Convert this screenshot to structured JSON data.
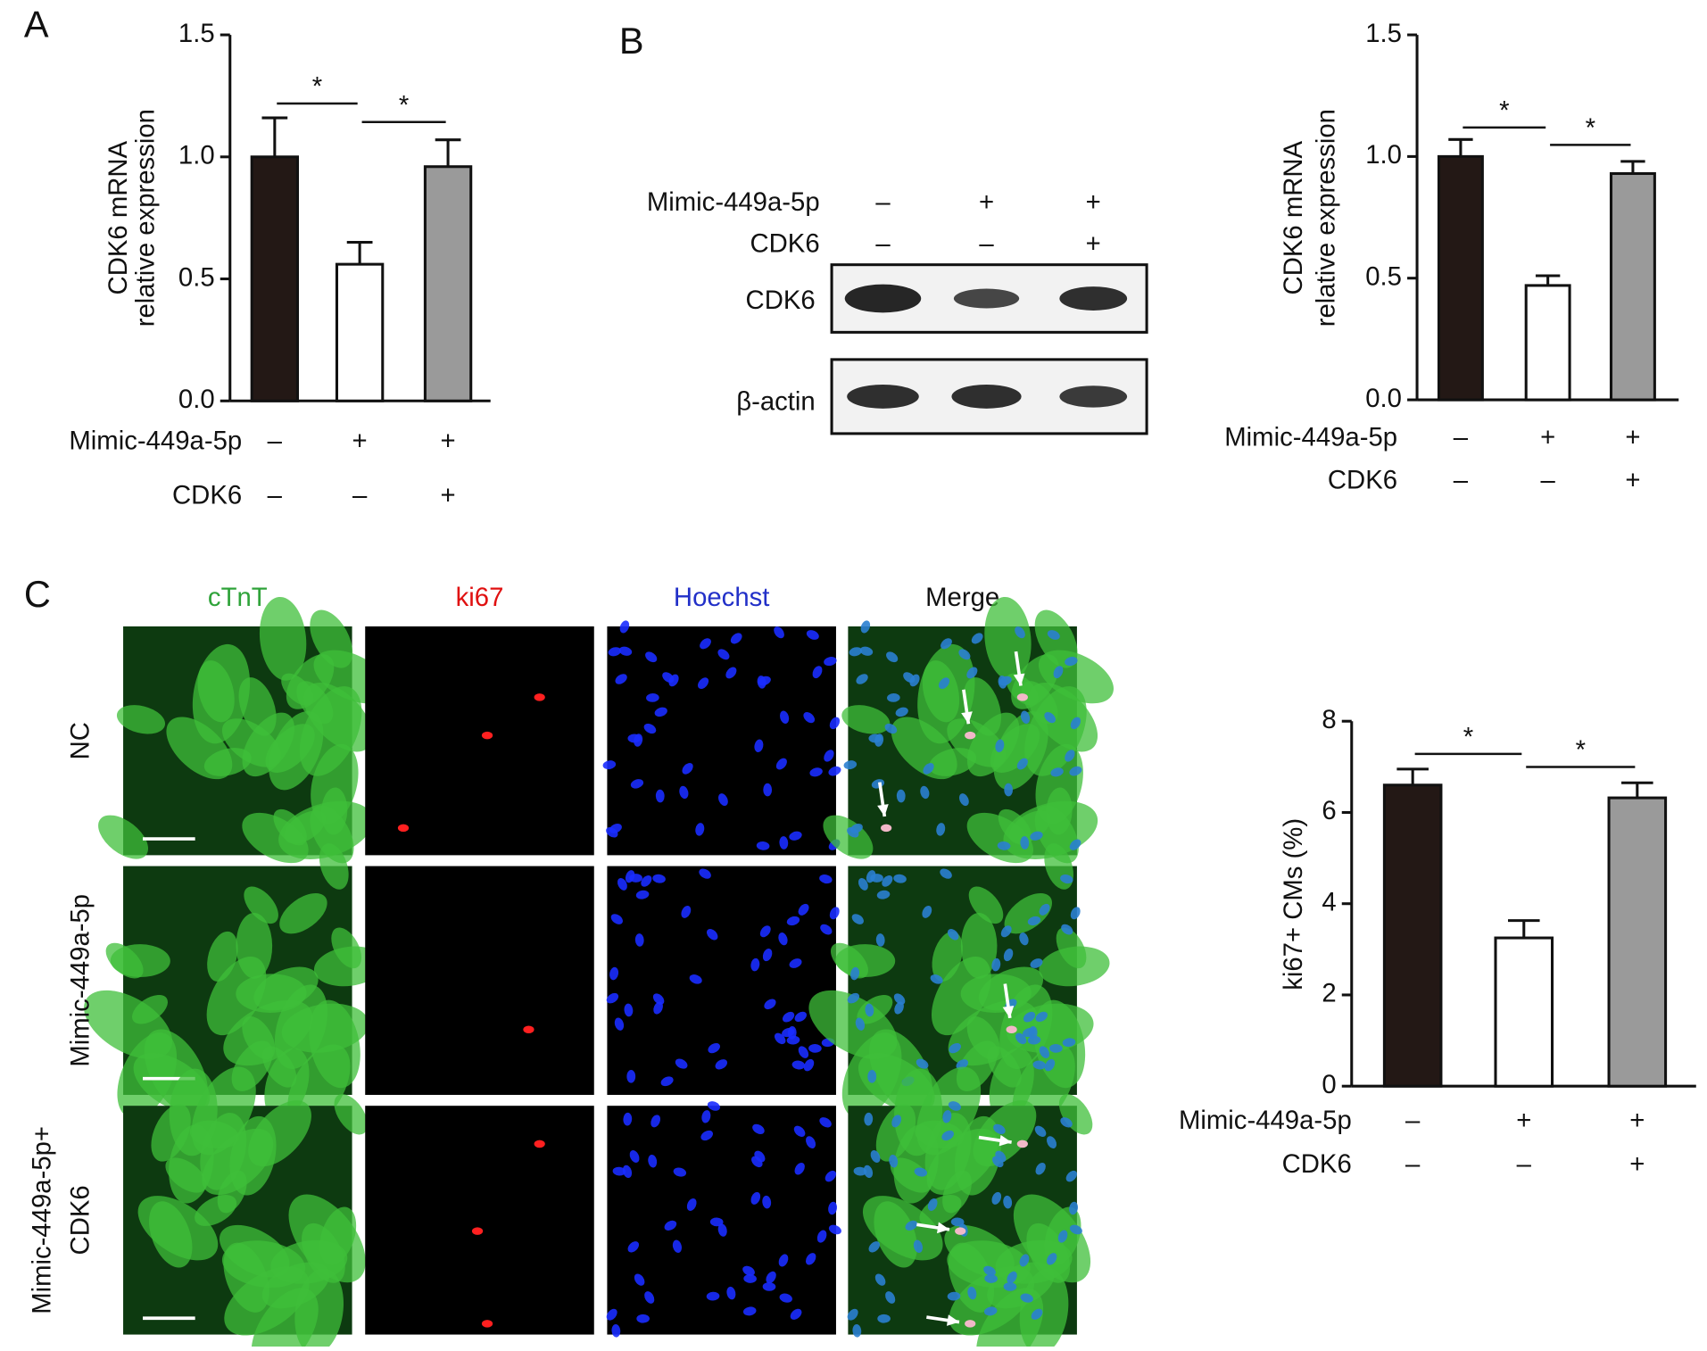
{
  "panel_labels": [
    "A",
    "B",
    "C"
  ],
  "chart_data": [
    {
      "type": "bar",
      "ylabel": [
        "CDK6 mRNA",
        "relative expression"
      ],
      "values": [
        1.0,
        0.56,
        0.96
      ],
      "errors": [
        0.16,
        0.09,
        0.11
      ],
      "colors": [
        "#231815",
        "#ffffff",
        "#9a9a9a"
      ],
      "ylim": [
        0,
        1.5
      ],
      "yticks": [
        {
          "value": 0,
          "label": "0.0"
        },
        0.5,
        {
          "value": 1,
          "label": "1.0"
        },
        1.5
      ],
      "conditions": [
        {
          "name": "Mimic-449a-5p",
          "signs": [
            "–",
            "+",
            "+"
          ]
        },
        {
          "name": "CDK6",
          "signs": [
            "–",
            "–",
            "+"
          ]
        }
      ],
      "annotations": [
        "*",
        "*"
      ]
    },
    {
      "type": "bar",
      "ylabel": [
        "CDK6 mRNA",
        "relative expression"
      ],
      "values": [
        1.0,
        0.47,
        0.93
      ],
      "errors": [
        0.07,
        0.04,
        0.05
      ],
      "colors": [
        "#231815",
        "#ffffff",
        "#9a9a9a"
      ],
      "ylim": [
        0,
        1.5
      ],
      "yticks": [
        {
          "value": 0,
          "label": "0.0"
        },
        0.5,
        {
          "value": 1,
          "label": "1.0"
        },
        1.5
      ],
      "conditions": [
        {
          "name": "Mimic-449a-5p",
          "signs": [
            "–",
            "+",
            "+"
          ]
        },
        {
          "name": "CDK6",
          "signs": [
            "–",
            "–",
            "+"
          ]
        }
      ],
      "annotations": [
        "*",
        "*"
      ]
    },
    {
      "type": "bar",
      "ylabel": [
        "ki67+ CMs (%)"
      ],
      "values": [
        6.6,
        3.25,
        6.32
      ],
      "errors": [
        0.35,
        0.38,
        0.33
      ],
      "colors": [
        "#231815",
        "#ffffff",
        "#9a9a9a"
      ],
      "ylim": [
        0,
        8
      ],
      "yticks": [
        0,
        2,
        4,
        6,
        8
      ],
      "conditions": [
        {
          "name": "Mimic-449a-5p",
          "signs": [
            "–",
            "+",
            "+"
          ]
        },
        {
          "name": "CDK6",
          "signs": [
            "–",
            "–",
            "+"
          ]
        }
      ],
      "annotations": [
        "*",
        "*"
      ]
    }
  ],
  "western_blot": {
    "conditions": [
      {
        "name": "Mimic-449a-5p",
        "signs": [
          "–",
          "+",
          "+"
        ]
      },
      {
        "name": "CDK6",
        "signs": [
          "–",
          "–",
          "+"
        ]
      }
    ],
    "rows": [
      "CDK6",
      "β-actin"
    ]
  },
  "immunofluorescence": {
    "channels": [
      "cTnT",
      "ki67",
      "Hoechst",
      "Merge"
    ],
    "rows": [
      [
        "NC"
      ],
      [
        "Mimic-449a-5p"
      ],
      [
        "Mimic-449a-5p+",
        "CDK6"
      ]
    ]
  }
}
